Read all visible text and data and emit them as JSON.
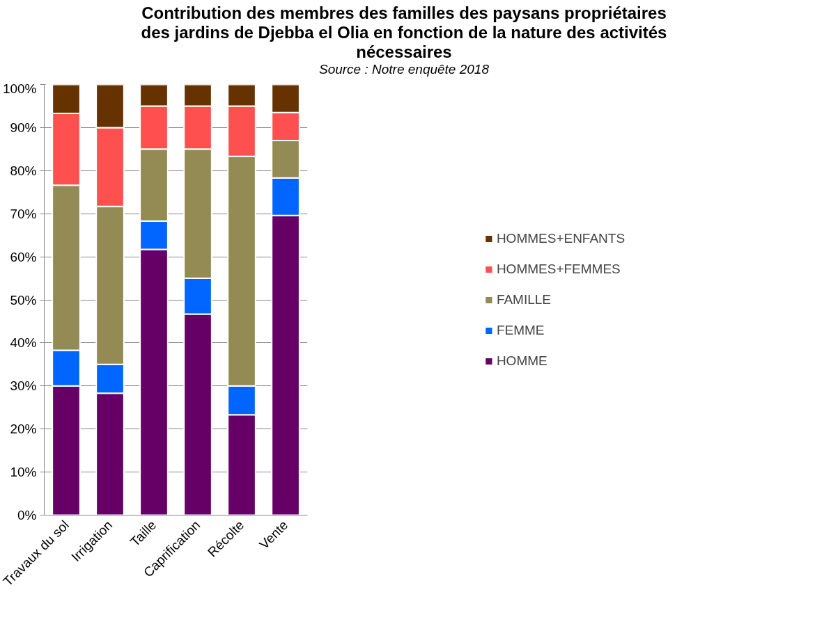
{
  "chart_data": {
    "type": "bar",
    "stacked": true,
    "title": "Contribution des membres des familles des paysans propriétaires\ndes jardins de Djebba el Olia en fonction de la nature des activités\nnécessaires",
    "subtitle": "Source : Notre enquête 2018",
    "categories": [
      "Travaux du sol",
      "Irrigation",
      "Taille",
      "Caprification",
      "Récolte",
      "Vente"
    ],
    "series": [
      {
        "name": "HOMME",
        "color": "#660066",
        "values": [
          30,
          28.3,
          61.7,
          46.7,
          23.3,
          69.6
        ]
      },
      {
        "name": "FEMME",
        "color": "#0066ff",
        "values": [
          8.3,
          6.7,
          6.6,
          8.3,
          6.7,
          8.7
        ]
      },
      {
        "name": "FAMILLE",
        "color": "#948a54",
        "values": [
          38.3,
          36.7,
          16.7,
          30,
          53.3,
          8.7
        ]
      },
      {
        "name": "HOMMES+FEMMES",
        "color": "#ff5050",
        "values": [
          16.7,
          18.3,
          10,
          10,
          11.7,
          6.5
        ]
      },
      {
        "name": "HOMMES+ENFANTS",
        "color": "#663300",
        "values": [
          6.7,
          10,
          5,
          5,
          5,
          6.5
        ]
      }
    ],
    "ylim": [
      0,
      100
    ],
    "yticks": [
      {
        "value": 0,
        "label": "0%"
      },
      {
        "value": 10,
        "label": "10%"
      },
      {
        "value": 20,
        "label": "20%"
      },
      {
        "value": 30,
        "label": "30%"
      },
      {
        "value": 40,
        "label": "40%"
      },
      {
        "value": 50,
        "label": "50%"
      },
      {
        "value": 60,
        "label": "60%"
      },
      {
        "value": 70,
        "label": "70%"
      },
      {
        "value": 80,
        "label": "80%"
      },
      {
        "value": 90,
        "label": "90%"
      },
      {
        "value": 100,
        "label": "100%"
      }
    ],
    "grid": "y",
    "legend": "right"
  }
}
